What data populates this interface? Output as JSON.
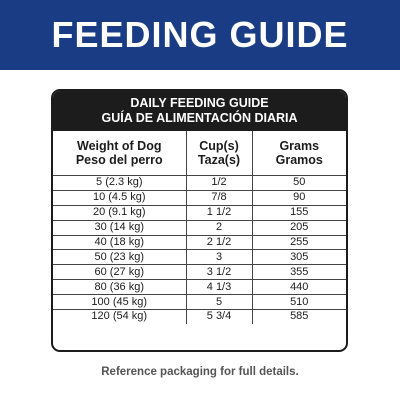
{
  "banner": {
    "title": "FEEDING GUIDE",
    "color": "#1a3c85"
  },
  "table": {
    "title_en": "DAILY FEEDING GUIDE",
    "title_es": "GUÍA DE ALIMENTACIÓN DIARIA",
    "headers": [
      {
        "en": "Weight of Dog",
        "es": "Peso del perro"
      },
      {
        "en": "Cup(s)",
        "es": "Taza(s)"
      },
      {
        "en": "Grams",
        "es": "Gramos"
      }
    ],
    "rows": [
      {
        "weight": "5 (2.3 kg)",
        "cups": "1/2",
        "grams": "50"
      },
      {
        "weight": "10 (4.5 kg)",
        "cups": "7/8",
        "grams": "90"
      },
      {
        "weight": "20 (9.1 kg)",
        "cups": "1 1/2",
        "grams": "155"
      },
      {
        "weight": "30 (14 kg)",
        "cups": "2",
        "grams": "205"
      },
      {
        "weight": "40 (18 kg)",
        "cups": "2 1/2",
        "grams": "255"
      },
      {
        "weight": "50 (23 kg)",
        "cups": "3",
        "grams": "305"
      },
      {
        "weight": "60 (27 kg)",
        "cups": "3 1/2",
        "grams": "355"
      },
      {
        "weight": "80 (36 kg)",
        "cups": "4 1/3",
        "grams": "440"
      },
      {
        "weight": "100 (45 kg)",
        "cups": "5",
        "grams": "510"
      },
      {
        "weight": "120 (54 kg)",
        "cups": "5 3/4",
        "grams": "585"
      }
    ]
  },
  "footnote": "Reference packaging for full details."
}
